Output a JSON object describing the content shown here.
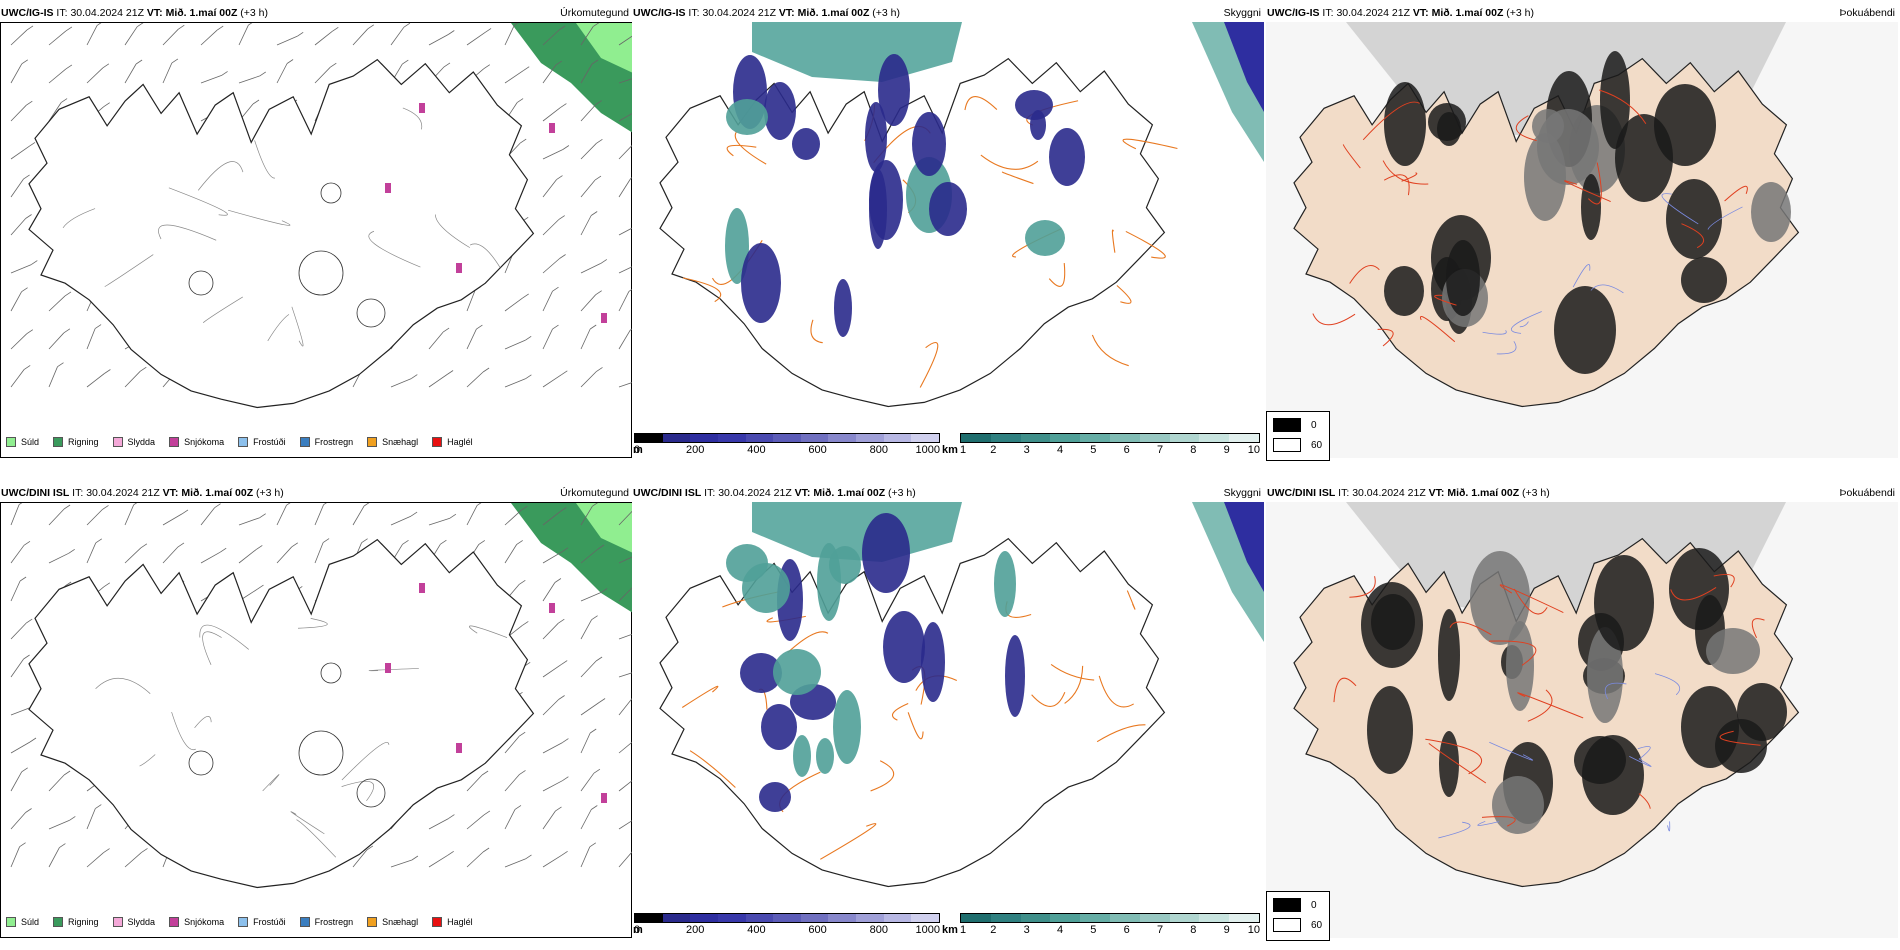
{
  "panels": [
    {
      "model": "UWC/IG-IS",
      "it_label": "IT:",
      "it_value": "30.04.2024 21Z",
      "vt_label": "VT:",
      "vt_value": "Mið. 1.maí 00Z",
      "lead": "(+3 h)",
      "product": "Úrkomutegund"
    },
    {
      "model": "UWC/IG-IS",
      "it_label": "IT:",
      "it_value": "30.04.2024 21Z",
      "vt_label": "VT:",
      "vt_value": "Mið. 1.maí 00Z",
      "lead": "(+3 h)",
      "product": "Skyggni"
    },
    {
      "model": "UWC/IG-IS",
      "it_label": "IT:",
      "it_value": "30.04.2024 21Z",
      "vt_label": "VT:",
      "vt_value": "Mið. 1.maí 00Z",
      "lead": "(+3 h)",
      "product": "Þokuábendi"
    },
    {
      "model": "UWC/DINI ISL",
      "it_label": "IT:",
      "it_value": "30.04.2024 21Z",
      "vt_label": "VT:",
      "vt_value": "Mið. 1.maí 00Z",
      "lead": "(+3 h)",
      "product": "Úrkomutegund"
    },
    {
      "model": "UWC/DINI ISL",
      "it_label": "IT:",
      "it_value": "30.04.2024 21Z",
      "vt_label": "VT:",
      "vt_value": "Mið. 1.maí 00Z",
      "lead": "(+3 h)",
      "product": "Skyggni"
    },
    {
      "model": "UWC/DINI ISL",
      "it_label": "IT:",
      "it_value": "30.04.2024 21Z",
      "vt_label": "VT:",
      "vt_value": "Mið. 1.maí 00Z",
      "lead": "(+3 h)",
      "product": "Þokuábendi"
    }
  ],
  "precip_legend": [
    {
      "label": "Súld",
      "color": "#90ee90"
    },
    {
      "label": "Rigning",
      "color": "#3a9a5c"
    },
    {
      "label": "Slydda",
      "color": "#f4a8d8"
    },
    {
      "label": "Snjókoma",
      "color": "#c2409a"
    },
    {
      "label": "Frostúði",
      "color": "#8cc0ec"
    },
    {
      "label": "Frostregn",
      "color": "#3a7ec0"
    },
    {
      "label": "Snæhagl",
      "color": "#f0a020"
    },
    {
      "label": "Haglél",
      "color": "#e81010"
    }
  ],
  "cloud_base_bar": {
    "unit": "m",
    "ticks": [
      "0",
      "200",
      "400",
      "600",
      "800",
      "1000"
    ],
    "colors": [
      "#000000",
      "#2a2a8c",
      "#2e2ea0",
      "#3838aa",
      "#4a4ab0",
      "#5c5cb8",
      "#7070c0",
      "#8888cc",
      "#a0a0d8",
      "#b8b8e4",
      "#d0d0ee"
    ]
  },
  "visibility_bar": {
    "unit": "km",
    "ticks": [
      "1",
      "2",
      "3",
      "4",
      "5",
      "6",
      "7",
      "8",
      "9",
      "10"
    ],
    "colors": [
      "#1f6e6e",
      "#2f8080",
      "#3f8f8a",
      "#50a098",
      "#66aea6",
      "#80bcb4",
      "#98c8c2",
      "#b0d6d0",
      "#c8e4df",
      "#e2f0ee"
    ]
  },
  "fog_legend": [
    {
      "label": "0",
      "color": "#000000"
    },
    {
      "label": "60",
      "color": "#ffffff"
    }
  ]
}
